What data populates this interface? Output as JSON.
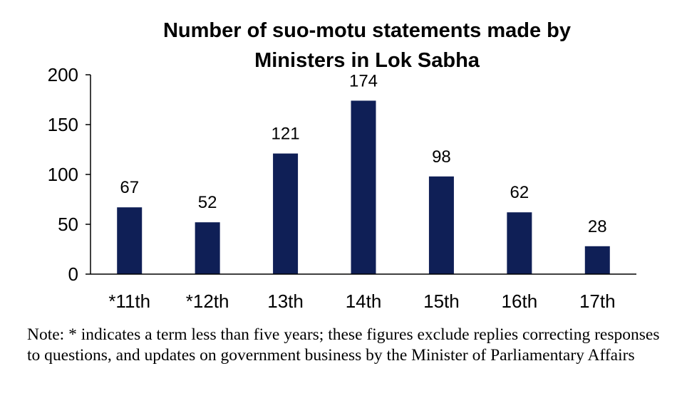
{
  "chart_data": {
    "type": "bar",
    "title_lines": [
      "Number of suo-motu statements made by",
      "Ministers in Lok Sabha"
    ],
    "categories": [
      "*11th",
      "*12th",
      "13th",
      "14th",
      "15th",
      "16th",
      "17th"
    ],
    "values": [
      67,
      52,
      121,
      174,
      98,
      62,
      28
    ],
    "ylim": [
      0,
      200
    ],
    "yticks": [
      "0",
      "50",
      "100",
      "150",
      "200"
    ],
    "bar_color": "#0f1f56",
    "grid": false,
    "legend": "none"
  },
  "note": "Note: * indicates a term less than five years; these figures exclude replies correcting responses to questions, and updates on government business by the Minister of Parliamentary Affairs"
}
